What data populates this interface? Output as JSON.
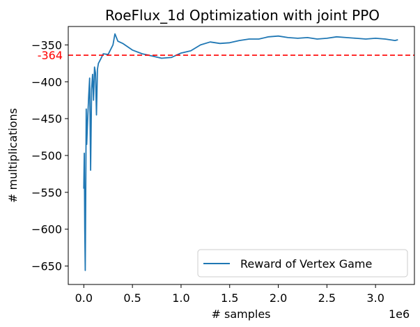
{
  "chart_data": {
    "type": "line",
    "title": "RoeFlux_1d Optimization with joint PPO",
    "xlabel": "# samples",
    "ylabel": "# multiplications",
    "x_offset_label": "1e6",
    "xlim": [
      -0.16,
      3.4
    ],
    "ylim": [
      -675,
      -325
    ],
    "x_ticks": [
      0.0,
      0.5,
      1.0,
      1.5,
      2.0,
      2.5,
      3.0
    ],
    "x_tick_labels": [
      "0.0",
      "0.5",
      "1.0",
      "1.5",
      "2.0",
      "2.5",
      "3.0"
    ],
    "y_ticks": [
      -350,
      -400,
      -450,
      -500,
      -550,
      -600,
      -650
    ],
    "y_tick_labels": [
      "−350",
      "−400",
      "−450",
      "−500",
      "−550",
      "−600",
      "−650"
    ],
    "grid": false,
    "legend_position": "bottom-right",
    "reference_line": {
      "y": -364,
      "label": "-364",
      "color": "#ff0000",
      "style": "dashed"
    },
    "series": [
      {
        "name": "Reward of Vertex Game",
        "color": "#1f77b4",
        "x": [
          0.0,
          0.005,
          0.01,
          0.015,
          0.02,
          0.025,
          0.03,
          0.04,
          0.05,
          0.06,
          0.07,
          0.08,
          0.09,
          0.1,
          0.11,
          0.12,
          0.13,
          0.14,
          0.15,
          0.17,
          0.2,
          0.25,
          0.3,
          0.32,
          0.35,
          0.4,
          0.5,
          0.6,
          0.7,
          0.8,
          0.9,
          1.0,
          1.1,
          1.2,
          1.3,
          1.4,
          1.5,
          1.6,
          1.7,
          1.8,
          1.9,
          2.0,
          2.1,
          2.2,
          2.3,
          2.4,
          2.5,
          2.6,
          2.7,
          2.8,
          2.9,
          3.0,
          3.1,
          3.2,
          3.23
        ],
        "y": [
          -545,
          -497,
          -600,
          -656,
          -550,
          -437,
          -485,
          -450,
          -420,
          -395,
          -520,
          -410,
          -390,
          -425,
          -380,
          -388,
          -445,
          -383,
          -375,
          -370,
          -362,
          -363,
          -350,
          -335,
          -345,
          -348,
          -357,
          -362,
          -365,
          -368,
          -367,
          -361,
          -358,
          -350,
          -346,
          -348,
          -347,
          -344,
          -342,
          -342,
          -339,
          -338,
          -340,
          -341,
          -340,
          -342,
          -341,
          -339,
          -340,
          -341,
          -342,
          -341,
          -342,
          -344,
          -343
        ]
      }
    ]
  }
}
